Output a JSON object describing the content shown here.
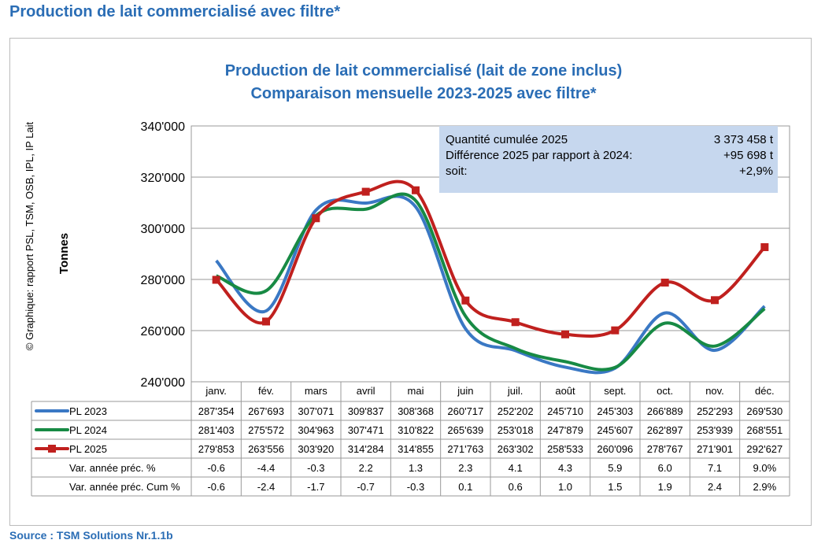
{
  "page_title": "Production de lait commercialisé avec filtre*",
  "source": "Source :  TSM Solutions Nr.1.1b",
  "chart_data": {
    "type": "line",
    "title": [
      "Production de lait commercialisé (lait de zone inclus)",
      "Comparaison mensuelle 2023-2025 avec filtre*"
    ],
    "ylabel": "Tonnes",
    "credit": "© Graphique: rapport PSL, TSM, OSB, IPL, IP Lait",
    "ylim": [
      240000,
      340000
    ],
    "yticks": [
      "240'000",
      "260'000",
      "280'000",
      "300'000",
      "320'000",
      "340'000"
    ],
    "grid": true,
    "categories": [
      "janv.",
      "fév.",
      "mars",
      "avril",
      "mai",
      "juin",
      "juil.",
      "août",
      "sept.",
      "oct.",
      "nov.",
      "déc."
    ],
    "series": [
      {
        "name": "PL 2023",
        "color": "#3a78c4",
        "marker": false,
        "values": [
          287354,
          267693,
          307071,
          309837,
          308368,
          260717,
          252202,
          245710,
          245303,
          266889,
          252293,
          269530
        ],
        "labels": [
          "287'354",
          "267'693",
          "307'071",
          "309'837",
          "308'368",
          "260'717",
          "252'202",
          "245'710",
          "245'303",
          "266'889",
          "252'293",
          "269'530"
        ]
      },
      {
        "name": "PL 2024",
        "color": "#178a44",
        "marker": false,
        "values": [
          281403,
          275572,
          304963,
          307471,
          310822,
          265639,
          253018,
          247879,
          245607,
          262897,
          253939,
          268551
        ],
        "labels": [
          "281'403",
          "275'572",
          "304'963",
          "307'471",
          "310'822",
          "265'639",
          "253'018",
          "247'879",
          "245'607",
          "262'897",
          "253'939",
          "268'551"
        ]
      },
      {
        "name": "PL 2025",
        "color": "#c0201e",
        "marker": true,
        "values": [
          279853,
          263556,
          303920,
          314284,
          314855,
          271763,
          263302,
          258533,
          260096,
          278767,
          271901,
          292627
        ],
        "labels": [
          "279'853",
          "263'556",
          "303'920",
          "314'284",
          "314'855",
          "271'763",
          "263'302",
          "258'533",
          "260'096",
          "278'767",
          "271'901",
          "292'627"
        ]
      }
    ],
    "extra_rows": [
      {
        "name": "Var. année préc. %",
        "values": [
          "-0.6",
          "-4.4",
          "-0.3",
          "2.2",
          "1.3",
          "2.3",
          "4.1",
          "4.3",
          "5.9",
          "6.0",
          "7.1",
          "9.0%"
        ]
      },
      {
        "name": "Var. année préc. Cum %",
        "values": [
          "-0.6",
          "-2.4",
          "-1.7",
          "-0.7",
          "-0.3",
          "0.1",
          "0.6",
          "1.0",
          "1.5",
          "1.9",
          "2.4",
          "2.9%"
        ]
      }
    ],
    "info_box": {
      "bg": "#c6d7ee",
      "rows": [
        [
          "Quantité cumulée 2025",
          "3 373 458 t"
        ],
        [
          "Différence 2025 par rapport à 2024:",
          "+95 698 t"
        ],
        [
          "soit:",
          "+2,9%"
        ]
      ]
    }
  }
}
